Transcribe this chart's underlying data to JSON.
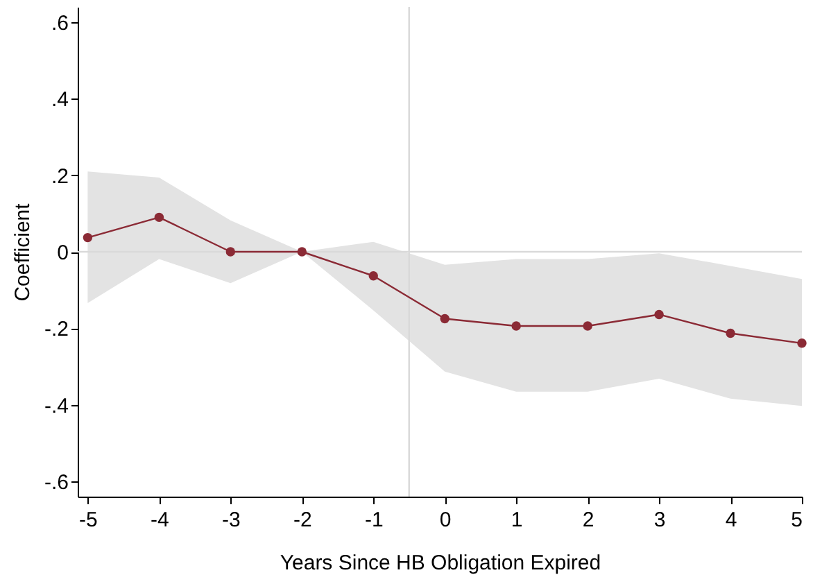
{
  "chart_data": {
    "type": "line",
    "xlabel": "Years Since HB Obligation Expired",
    "ylabel": "Coefficient",
    "x": [
      -5,
      -4,
      -3,
      -2,
      -1,
      0,
      1,
      2,
      3,
      4,
      5
    ],
    "series": [
      {
        "color": "#8b2a35",
        "values": [
          0.037,
          0.09,
          0,
          0,
          -0.063,
          -0.175,
          -0.194,
          -0.194,
          -0.164,
          -0.213,
          -0.239
        ],
        "lower": [
          -0.134,
          -0.019,
          -0.082,
          0,
          -0.153,
          -0.313,
          -0.366,
          -0.366,
          -0.332,
          -0.384,
          -0.403
        ],
        "upper": [
          0.21,
          0.194,
          0.082,
          0,
          0.026,
          -0.034,
          -0.019,
          -0.019,
          -0.004,
          -0.037,
          -0.071
        ]
      }
    ],
    "xlim": [
      -5.14,
      5
    ],
    "xticks": [
      -5,
      -4,
      -3,
      -2,
      -1,
      0,
      1,
      2,
      3,
      4,
      5
    ],
    "ylim": [
      -0.64,
      0.64
    ],
    "yticks": [
      {
        "value": -0.6,
        "label": "-.6"
      },
      {
        "value": -0.4,
        "label": "-.4"
      },
      {
        "value": -0.2,
        "label": "-.2"
      },
      0,
      {
        "value": 0.2,
        "label": ".2"
      },
      {
        "value": 0.4,
        "label": ".4"
      },
      {
        "value": 0.6,
        "label": ".6"
      }
    ],
    "ref_lines": [
      {
        "axis": "y",
        "value": 0,
        "color": "#d9d9d9"
      },
      {
        "axis": "x",
        "value": -0.5,
        "color": "#d9d9d9"
      }
    ],
    "grid": false,
    "marker": "circle",
    "line_style": "solid"
  }
}
